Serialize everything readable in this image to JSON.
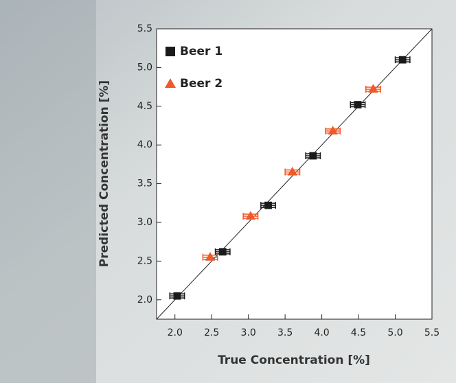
{
  "chart_data": {
    "type": "scatter",
    "xlabel": "True Concentration [%]",
    "ylabel": "Predicted Concentration [%]",
    "xlim": [
      1.75,
      5.5
    ],
    "ylim": [
      1.75,
      5.5
    ],
    "xticks": [
      {
        "value": 2,
        "label": "2.0"
      },
      2.5,
      {
        "value": 3,
        "label": "3.0"
      },
      3.5,
      {
        "value": 4,
        "label": "4.0"
      },
      4.5,
      {
        "value": 5,
        "label": "5.0"
      },
      5.5
    ],
    "yticks": [
      {
        "value": 2,
        "label": "2.0"
      },
      2.5,
      {
        "value": 3,
        "label": "3.0"
      },
      3.5,
      {
        "value": 4,
        "label": "4.0"
      },
      4.5,
      {
        "value": 5,
        "label": "5.0"
      },
      5.5
    ],
    "identity_line": true,
    "legend": "upper left",
    "series": [
      {
        "name": "Beer 1",
        "color": "#1a1a1a",
        "marker": "square",
        "x": [
          2.03,
          2.65,
          3.27,
          3.88,
          4.49,
          5.1
        ],
        "values": [
          2.05,
          2.62,
          3.22,
          3.86,
          4.52,
          5.1
        ],
        "xerr": [
          0.1,
          0.1,
          0.1,
          0.1,
          0.1,
          0.1
        ]
      },
      {
        "name": "Beer 2",
        "color": "#f05a28",
        "marker": "triangle",
        "x": [
          2.48,
          3.03,
          3.6,
          4.15,
          4.7
        ],
        "values": [
          2.55,
          3.08,
          3.65,
          4.18,
          4.72
        ],
        "xerr": [
          0.1,
          0.1,
          0.1,
          0.1,
          0.1
        ]
      }
    ]
  }
}
